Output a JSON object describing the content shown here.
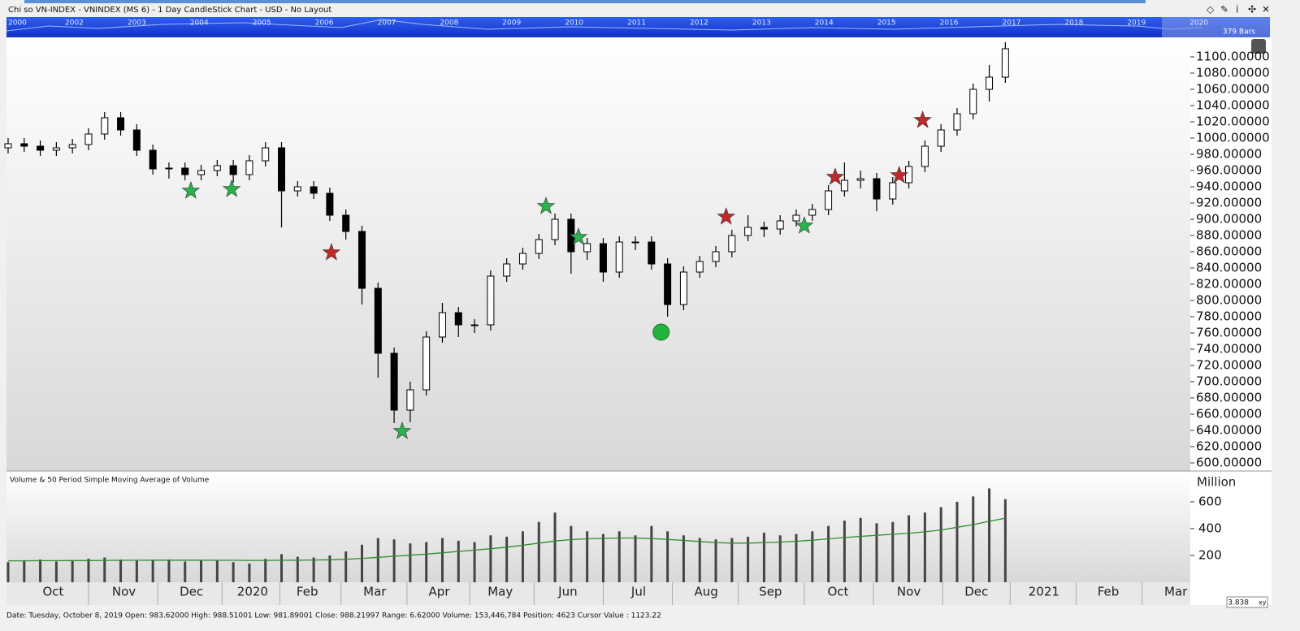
{
  "window_title": "Chi so VN-INDEX - VNINDEX (MS 6) - 1 Day CandleStick Chart - USD - No Layout",
  "overview": {
    "years": [
      "2000",
      "2002",
      "2003",
      "2004",
      "2005",
      "2006",
      "2007",
      "2008",
      "2009",
      "2010",
      "2011",
      "2012",
      "2013",
      "2014",
      "2015",
      "2016",
      "2017",
      "2018",
      "2019",
      "2020"
    ],
    "bars_label": "379 Bars"
  },
  "status_bar": "Date: Tuesday, October 8, 2019 Open: 983.62000 High: 988.51001 Low: 981.89001 Close: 988.21997 Range: 6.62000 Volume: 153,446,784 Position: 4623 Cursor Value : 1123.22",
  "zoom_label": "3.838",
  "chart_data": [
    {
      "type": "candlestick",
      "x": [
        0,
        5,
        10,
        15,
        20,
        25,
        30,
        35,
        40,
        45,
        50,
        55,
        60,
        65,
        70,
        75,
        80,
        85,
        90,
        95,
        100,
        105,
        110,
        115,
        120,
        125,
        130,
        135,
        140,
        145,
        150,
        155,
        160,
        165,
        170,
        175,
        180,
        185,
        190,
        195,
        200,
        205,
        210,
        215,
        220,
        225,
        230,
        235,
        240,
        245,
        250,
        255,
        260,
        265,
        270,
        275,
        280,
        285,
        290,
        295,
        300,
        305,
        310
      ],
      "open": [
        988,
        993,
        990,
        985,
        988,
        992,
        1005,
        1025,
        1010,
        985,
        962,
        963,
        955,
        960,
        966,
        955,
        972,
        988,
        935,
        940,
        932,
        905,
        885,
        815,
        735,
        665,
        690,
        755,
        785,
        770,
        770,
        830,
        845,
        858,
        875,
        900,
        860,
        870,
        835,
        872,
        872,
        845,
        795,
        835,
        848,
        860,
        880,
        890,
        888,
        898,
        905,
        912,
        935,
        948,
        950,
        925,
        945,
        965,
        990,
        1010,
        1030,
        1060,
        1075
      ],
      "high": [
        1000,
        1000,
        997,
        995,
        999,
        1012,
        1032,
        1032,
        1017,
        992,
        970,
        970,
        967,
        973,
        973,
        979,
        995,
        995,
        947,
        947,
        939,
        912,
        892,
        822,
        742,
        700,
        762,
        797,
        792,
        777,
        837,
        852,
        865,
        882,
        907,
        907,
        877,
        877,
        879,
        879,
        879,
        852,
        842,
        855,
        867,
        887,
        905,
        897,
        905,
        912,
        919,
        942,
        970,
        960,
        957,
        952,
        972,
        997,
        1017,
        1037,
        1067,
        1090,
        1118
      ],
      "low": [
        981,
        983,
        978,
        978,
        981,
        985,
        998,
        1003,
        978,
        955,
        950,
        948,
        948,
        953,
        945,
        948,
        965,
        890,
        928,
        925,
        898,
        875,
        795,
        705,
        649,
        650,
        683,
        748,
        755,
        760,
        763,
        823,
        838,
        851,
        868,
        833,
        850,
        823,
        828,
        862,
        838,
        780,
        788,
        828,
        841,
        853,
        873,
        878,
        881,
        891,
        898,
        905,
        928,
        938,
        910,
        918,
        938,
        958,
        983,
        1003,
        1023,
        1045,
        1068
      ],
      "close": [
        993,
        990,
        985,
        988,
        992,
        1005,
        1025,
        1010,
        985,
        962,
        963,
        955,
        960,
        966,
        955,
        972,
        988,
        935,
        940,
        932,
        905,
        885,
        815,
        735,
        665,
        690,
        755,
        785,
        770,
        770,
        830,
        845,
        858,
        875,
        900,
        860,
        870,
        835,
        872,
        872,
        845,
        795,
        835,
        848,
        860,
        880,
        890,
        888,
        898,
        905,
        912,
        935,
        948,
        950,
        925,
        945,
        965,
        990,
        1010,
        1030,
        1060,
        1075,
        1110
      ],
      "up_color": "#ffffff",
      "down_color": "#000000",
      "xlim": [
        -0.5,
        367.5
      ],
      "ylim": [
        590,
        1124
      ],
      "yticks": [
        {
          "value": 600,
          "label": "600.00000"
        },
        {
          "value": 620,
          "label": "620.00000"
        },
        {
          "value": 640,
          "label": "640.00000"
        },
        {
          "value": 660,
          "label": "660.00000"
        },
        {
          "value": 680,
          "label": "680.00000"
        },
        {
          "value": 700,
          "label": "700.00000"
        },
        {
          "value": 720,
          "label": "720.00000"
        },
        {
          "value": 740,
          "label": "740.00000"
        },
        {
          "value": 760,
          "label": "760.00000"
        },
        {
          "value": 780,
          "label": "780.00000"
        },
        {
          "value": 800,
          "label": "800.00000"
        },
        {
          "value": 820,
          "label": "820.00000"
        },
        {
          "value": 840,
          "label": "840.00000"
        },
        {
          "value": 860,
          "label": "860.00000"
        },
        {
          "value": 880,
          "label": "880.00000"
        },
        {
          "value": 900,
          "label": "900.00000"
        },
        {
          "value": 920,
          "label": "920.00000"
        },
        {
          "value": 940,
          "label": "940.00000"
        },
        {
          "value": 960,
          "label": "960.00000"
        },
        {
          "value": 980,
          "label": "980.00000"
        },
        {
          "value": 1000,
          "label": "1000.00000"
        },
        {
          "value": 1020,
          "label": "1020.00000"
        },
        {
          "value": 1040,
          "label": "1040.00000"
        },
        {
          "value": 1060,
          "label": "1060.00000"
        },
        {
          "value": 1080,
          "label": "1080.00000"
        },
        {
          "value": 1100,
          "label": "1100.00000"
        }
      ],
      "xticks": [
        {
          "value": 14,
          "label": "Oct"
        },
        {
          "value": 36,
          "label": "Nov"
        },
        {
          "value": 57,
          "label": "Dec"
        },
        {
          "value": 76,
          "label": "2020"
        },
        {
          "value": 93,
          "label": "Feb"
        },
        {
          "value": 114,
          "label": "Mar"
        },
        {
          "value": 134,
          "label": "Apr"
        },
        {
          "value": 153,
          "label": "May"
        },
        {
          "value": 174,
          "label": "Jun"
        },
        {
          "value": 196,
          "label": "Jul"
        },
        {
          "value": 217,
          "label": "Aug"
        },
        {
          "value": 237,
          "label": "Sep"
        },
        {
          "value": 258,
          "label": "Oct"
        },
        {
          "value": 280,
          "label": "Nov"
        },
        {
          "value": 301,
          "label": "Dec"
        },
        {
          "value": 322,
          "label": "2021"
        },
        {
          "value": 342,
          "label": "Feb"
        },
        {
          "value": 363,
          "label": "Mar"
        }
      ],
      "markers": [
        {
          "shape": "star",
          "color": "#2bb24c",
          "x": 56.8,
          "y": 935
        },
        {
          "shape": "star",
          "color": "#2bb24c",
          "x": 69.5,
          "y": 937
        },
        {
          "shape": "star",
          "color": "#2bb24c",
          "x": 122.5,
          "y": 639
        },
        {
          "shape": "star",
          "color": "#2bb24c",
          "x": 167.2,
          "y": 916
        },
        {
          "shape": "star",
          "color": "#2bb24c",
          "x": 177.3,
          "y": 878
        },
        {
          "shape": "star",
          "color": "#2bb24c",
          "x": 247.5,
          "y": 892
        },
        {
          "shape": "star",
          "color": "#c0282a",
          "x": 100.5,
          "y": 859
        },
        {
          "shape": "star",
          "color": "#c0282a",
          "x": 223.2,
          "y": 903
        },
        {
          "shape": "star",
          "color": "#c0282a",
          "x": 257.1,
          "y": 952
        },
        {
          "shape": "star",
          "color": "#c0282a",
          "x": 277,
          "y": 954
        },
        {
          "shape": "star",
          "color": "#c0282a",
          "x": 284.3,
          "y": 1022
        },
        {
          "shape": "circle",
          "color": "#22b43a",
          "x": 203,
          "y": 761
        }
      ]
    },
    {
      "type": "bar",
      "title": "Volume & 50 Period Simple Moving Average of Volume",
      "y_label": "Million",
      "x": [
        0,
        5,
        10,
        15,
        20,
        25,
        30,
        35,
        40,
        45,
        50,
        55,
        60,
        65,
        70,
        75,
        80,
        85,
        90,
        95,
        100,
        105,
        110,
        115,
        120,
        125,
        130,
        135,
        140,
        145,
        150,
        155,
        160,
        165,
        170,
        175,
        180,
        185,
        190,
        195,
        200,
        205,
        210,
        215,
        220,
        225,
        230,
        235,
        240,
        245,
        250,
        255,
        260,
        265,
        270,
        275,
        280,
        285,
        290,
        295,
        300,
        305,
        310
      ],
      "values": [
        150,
        165,
        170,
        155,
        160,
        175,
        185,
        170,
        160,
        165,
        170,
        155,
        165,
        160,
        150,
        140,
        175,
        210,
        190,
        185,
        200,
        230,
        280,
        330,
        320,
        290,
        300,
        330,
        310,
        300,
        350,
        340,
        380,
        450,
        520,
        420,
        380,
        360,
        380,
        350,
        420,
        380,
        350,
        330,
        320,
        330,
        340,
        370,
        350,
        360,
        380,
        420,
        460,
        480,
        440,
        450,
        500,
        520,
        560,
        600,
        640,
        700,
        620
      ],
      "color": "#444444",
      "line": {
        "color": "#2e8b2e",
        "values": [
          160,
          160,
          161,
          161,
          162,
          162,
          163,
          164,
          164,
          165,
          165,
          165,
          165,
          164,
          164,
          163,
          163,
          164,
          165,
          166,
          168,
          172,
          178,
          186,
          194,
          202,
          210,
          220,
          230,
          240,
          250,
          262,
          276,
          292,
          308,
          318,
          324,
          328,
          330,
          330,
          326,
          320,
          312,
          304,
          296,
          292,
          292,
          296,
          300,
          306,
          314,
          324,
          334,
          342,
          350,
          358,
          366,
          376,
          390,
          410,
          430,
          455,
          478
        ]
      },
      "xlim": [
        -0.5,
        367.5
      ],
      "ylim": [
        0,
        830
      ],
      "yticks": [
        200,
        400,
        600
      ]
    }
  ]
}
